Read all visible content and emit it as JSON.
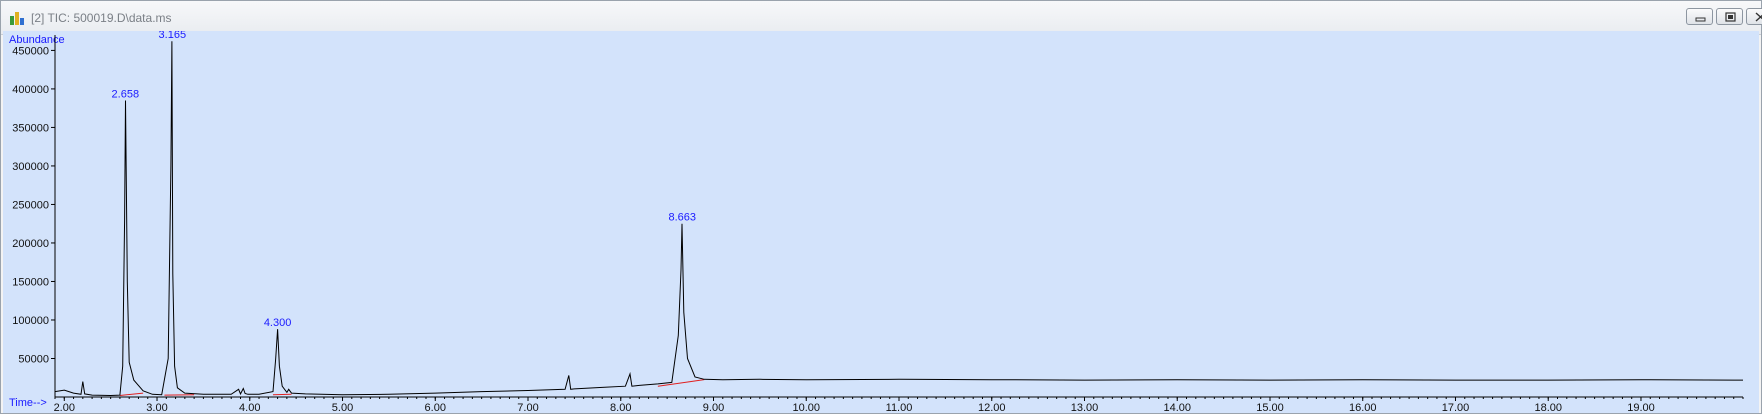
{
  "window": {
    "title": "[2] TIC: 500019.D\\data.ms"
  },
  "colors": {
    "plot_background": "#d3e3fb",
    "trace": "#000000",
    "peak_label": "#1a1aff",
    "baseline": "#e02020"
  },
  "icons": {
    "app": "chromatogram-app-icon",
    "minimize": "minimize-icon",
    "restore": "restore-icon",
    "close": "close-icon"
  },
  "chart_data": {
    "type": "line",
    "title": "",
    "ylabel": "Abundance",
    "xlabel": "Time-->",
    "xlim": [
      1.9,
      20.1
    ],
    "ylim": [
      0,
      470000
    ],
    "grid": false,
    "x_ticks": [
      "2.00",
      "3.00",
      "4.00",
      "5.00",
      "6.00",
      "7.00",
      "8.00",
      "9.00",
      "10.00",
      "11.00",
      "12.00",
      "13.00",
      "14.00",
      "15.00",
      "16.00",
      "17.00",
      "18.00",
      "19.00"
    ],
    "y_ticks": [
      "50000",
      "100000",
      "150000",
      "200000",
      "250000",
      "300000",
      "350000",
      "400000",
      "450000"
    ],
    "series": [
      {
        "x": [
          1.9,
          2.0,
          2.1,
          2.18,
          2.2,
          2.22,
          2.3,
          2.5,
          2.6,
          2.63,
          2.65,
          2.66,
          2.68,
          2.7,
          2.75,
          2.85,
          2.95,
          3.05,
          3.12,
          3.15,
          3.16,
          3.17,
          3.19,
          3.22,
          3.3,
          3.5,
          3.8,
          3.88,
          3.9,
          3.93,
          3.95,
          3.98,
          4.1,
          4.25,
          4.28,
          4.3,
          4.32,
          4.35,
          4.4,
          4.42,
          4.45,
          4.6,
          5.0,
          5.5,
          6.0,
          6.5,
          7.0,
          7.4,
          7.44,
          7.46,
          7.5,
          7.8,
          8.05,
          8.1,
          8.12,
          8.2,
          8.4,
          8.55,
          8.62,
          8.65,
          8.66,
          8.68,
          8.72,
          8.8,
          8.9,
          9.1,
          9.5,
          10.0,
          11.0,
          12.0,
          13.0,
          14.0,
          15.0,
          16.0,
          17.0,
          18.0,
          19.0,
          20.0,
          20.1
        ],
        "y": [
          7000,
          9000,
          5000,
          3500,
          20000,
          4000,
          2500,
          2000,
          2500,
          40000,
          230000,
          385000,
          150000,
          45000,
          22000,
          8000,
          3500,
          3000,
          50000,
          300000,
          462000,
          160000,
          40000,
          12000,
          5000,
          3500,
          3500,
          10000,
          4000,
          11000,
          4500,
          3500,
          3500,
          7000,
          50000,
          88000,
          40000,
          14000,
          6000,
          10000,
          5000,
          4000,
          3000,
          3500,
          5000,
          7000,
          8500,
          10000,
          28000,
          10000,
          10500,
          12500,
          14000,
          30000,
          14000,
          15000,
          17000,
          19000,
          80000,
          165000,
          225000,
          110000,
          50000,
          26000,
          23000,
          22500,
          23000,
          22500,
          23000,
          22500,
          22000,
          22500,
          22000,
          22500,
          22000,
          22000,
          22500,
          22000,
          22000
        ]
      }
    ],
    "peak_labels": [
      {
        "x": 2.658,
        "y": 385000,
        "text": "2.658"
      },
      {
        "x": 3.165,
        "y": 462000,
        "text": "3.165"
      },
      {
        "x": 4.3,
        "y": 88000,
        "text": "4.300"
      },
      {
        "x": 8.663,
        "y": 225000,
        "text": "8.663"
      }
    ],
    "baselines": [
      {
        "x1": 2.6,
        "y1": 2000,
        "x2": 2.85,
        "y2": 5000
      },
      {
        "x1": 3.08,
        "y1": 2500,
        "x2": 3.4,
        "y2": 3000
      },
      {
        "x1": 4.25,
        "y1": 3000,
        "x2": 4.45,
        "y2": 3500
      },
      {
        "x1": 8.4,
        "y1": 14000,
        "x2": 8.9,
        "y2": 22500
      }
    ]
  }
}
